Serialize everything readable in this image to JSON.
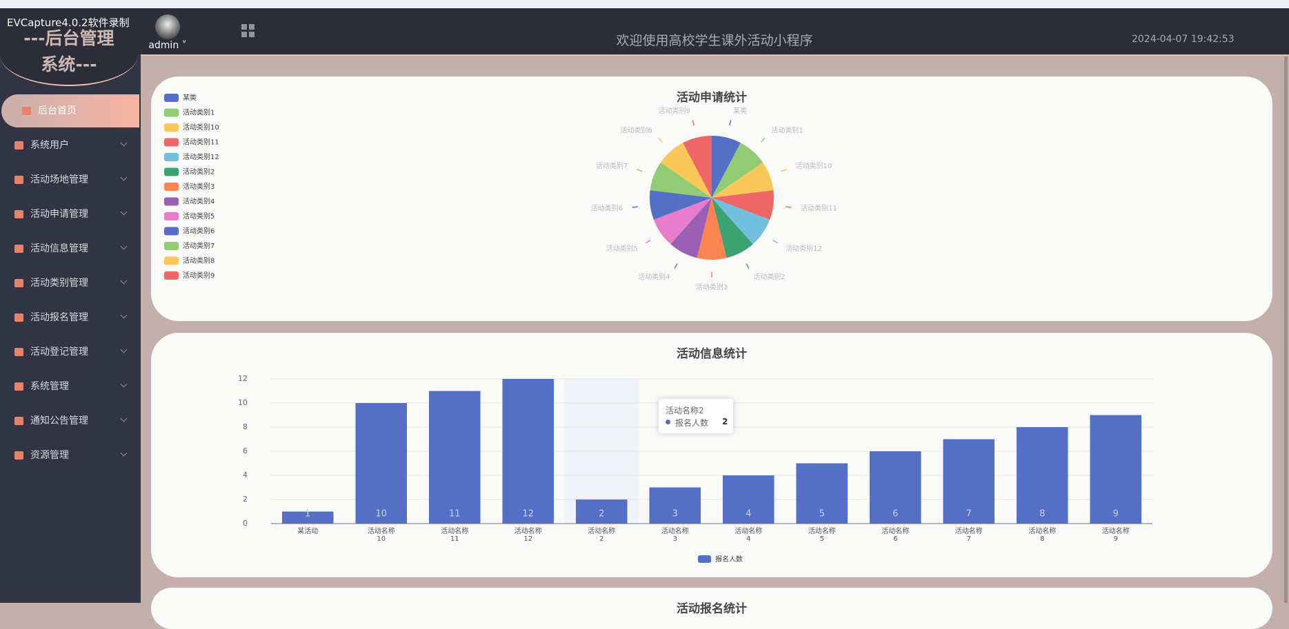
{
  "watermark": "EVCapture4.0.2软件录制",
  "sidebar": {
    "logo_line1": "---后台管理",
    "logo_line2": "系统---",
    "menu": [
      "后台首页",
      "系统用户",
      "活动场地管理",
      "活动申请管理",
      "活动信息管理",
      "活动类别管理",
      "活动报名管理",
      "活动登记管理",
      "系统管理",
      "通知公告管理",
      "资源管理"
    ]
  },
  "header": {
    "user": "admin",
    "title": "欢迎使用高校学生课外活动小程序",
    "datetime": "2024-04-07 19:42:53"
  },
  "chart_data": [
    {
      "type": "pie",
      "title": "活动申请统计",
      "categories": [
        "某类",
        "活动类别1",
        "活动类别10",
        "活动类别11",
        "活动类别12",
        "活动类别2",
        "活动类别3",
        "活动类别4",
        "活动类别5",
        "活动类别6",
        "活动类别7",
        "活动类别8",
        "活动类别9"
      ],
      "values": [
        1,
        1,
        1,
        1,
        1,
        1,
        1,
        1,
        1,
        1,
        1,
        1,
        1
      ],
      "colors": [
        "#5470c6",
        "#91cc75",
        "#fac858",
        "#ee6666",
        "#73c0de",
        "#3ba272",
        "#fc8452",
        "#9a60b4",
        "#ea7ccc",
        "#5470c6",
        "#91cc75",
        "#fac858",
        "#ee6666"
      ],
      "rose": true
    },
    {
      "type": "bar",
      "title": "活动信息统计",
      "categories": [
        "某活动",
        "活动名称\n10",
        "活动名称\n11",
        "活动名称\n12",
        "活动名称\n2",
        "活动名称\n3",
        "活动名称\n4",
        "活动名称\n5",
        "活动名称\n6",
        "活动名称\n7",
        "活动名称\n8",
        "活动名称\n9"
      ],
      "series": [
        {
          "name": "报名人数",
          "color": "#5470c6",
          "values": [
            1,
            10,
            11,
            12,
            2,
            3,
            4,
            5,
            6,
            7,
            8,
            9
          ]
        }
      ],
      "ylim": [
        0,
        12
      ],
      "yticks": [
        0,
        2,
        4,
        6,
        8,
        10,
        12
      ],
      "grid": true,
      "tooltip": {
        "title": "活动名称2"
      }
    }
  ],
  "panel3_title": "活动报名统计"
}
